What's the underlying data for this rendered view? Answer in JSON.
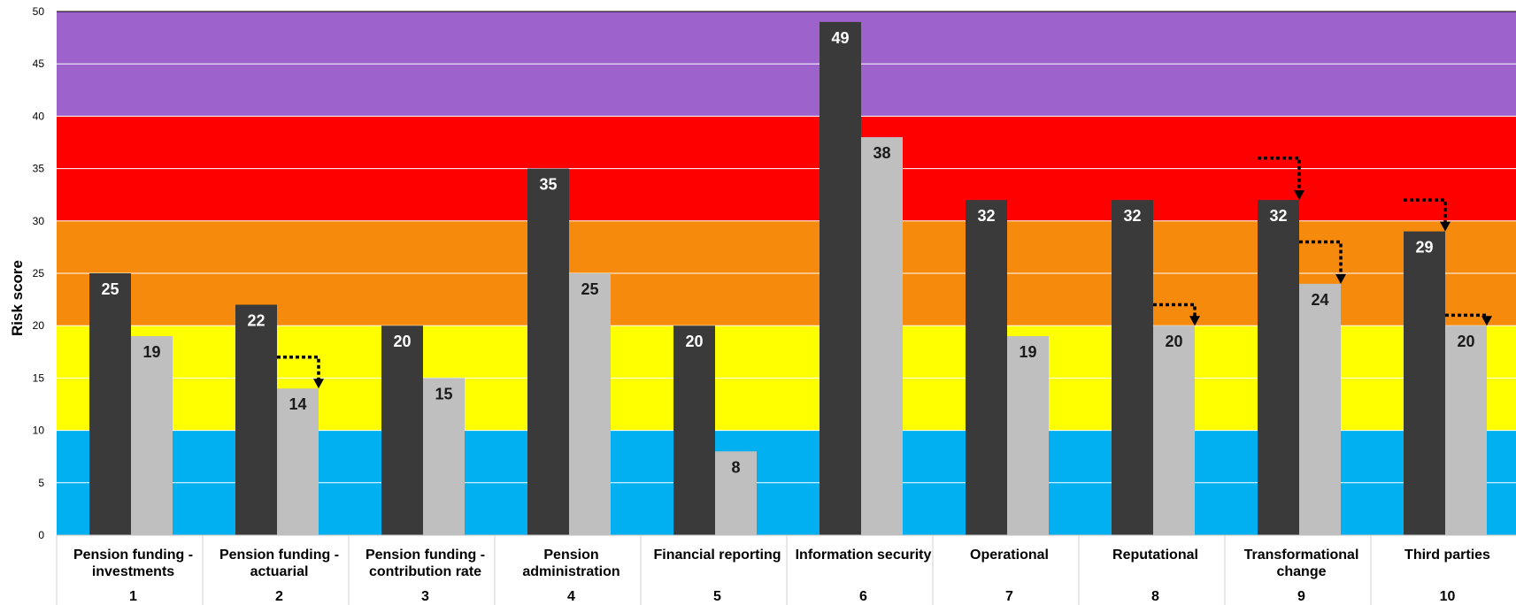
{
  "chart_data": {
    "type": "bar",
    "ylabel": "Risk score",
    "ylim": [
      0,
      50
    ],
    "yticks": [
      0,
      5,
      10,
      15,
      20,
      25,
      30,
      35,
      40,
      45,
      50
    ],
    "bands": [
      {
        "from": 0,
        "to": 10,
        "color": "#00b0f0"
      },
      {
        "from": 10,
        "to": 20,
        "color": "#ffff00"
      },
      {
        "from": 20,
        "to": 30,
        "color": "#f58a0c"
      },
      {
        "from": 30,
        "to": 40,
        "color": "#ff0000"
      },
      {
        "from": 40,
        "to": 50,
        "color": "#9e62cc"
      }
    ],
    "categories": [
      {
        "label": [
          "Pension funding -",
          "investments"
        ],
        "number": "1"
      },
      {
        "label": [
          "Pension funding -",
          "actuarial"
        ],
        "number": "2"
      },
      {
        "label": [
          "Pension funding -",
          "contribution rate"
        ],
        "number": "3"
      },
      {
        "label": [
          "Pension",
          "administration"
        ],
        "number": "4"
      },
      {
        "label": [
          "Financial reporting"
        ],
        "number": "5"
      },
      {
        "label": [
          "Information security"
        ],
        "number": "6"
      },
      {
        "label": [
          "Operational"
        ],
        "number": "7"
      },
      {
        "label": [
          "Reputational"
        ],
        "number": "8"
      },
      {
        "label": [
          "Transformational",
          "change"
        ],
        "number": "9"
      },
      {
        "label": [
          "Third parties"
        ],
        "number": "10"
      }
    ],
    "series": [
      {
        "values": [
          25,
          22,
          20,
          35,
          20,
          49,
          32,
          32,
          32,
          29
        ],
        "color": "#3a3a3a"
      },
      {
        "values": [
          19,
          14,
          15,
          25,
          8,
          38,
          19,
          20,
          24,
          20
        ],
        "color": "#bfbfbf"
      }
    ],
    "movement_arrows": [
      {
        "category": 2,
        "series": 1,
        "from": 17
      },
      {
        "category": 8,
        "series": 1,
        "from": 22
      },
      {
        "category": 9,
        "series": 0,
        "from": 36
      },
      {
        "category": 9,
        "series": 1,
        "from": 28
      },
      {
        "category": 10,
        "series": 0,
        "from": 32
      },
      {
        "category": 10,
        "series": 1,
        "from": 21
      }
    ]
  }
}
